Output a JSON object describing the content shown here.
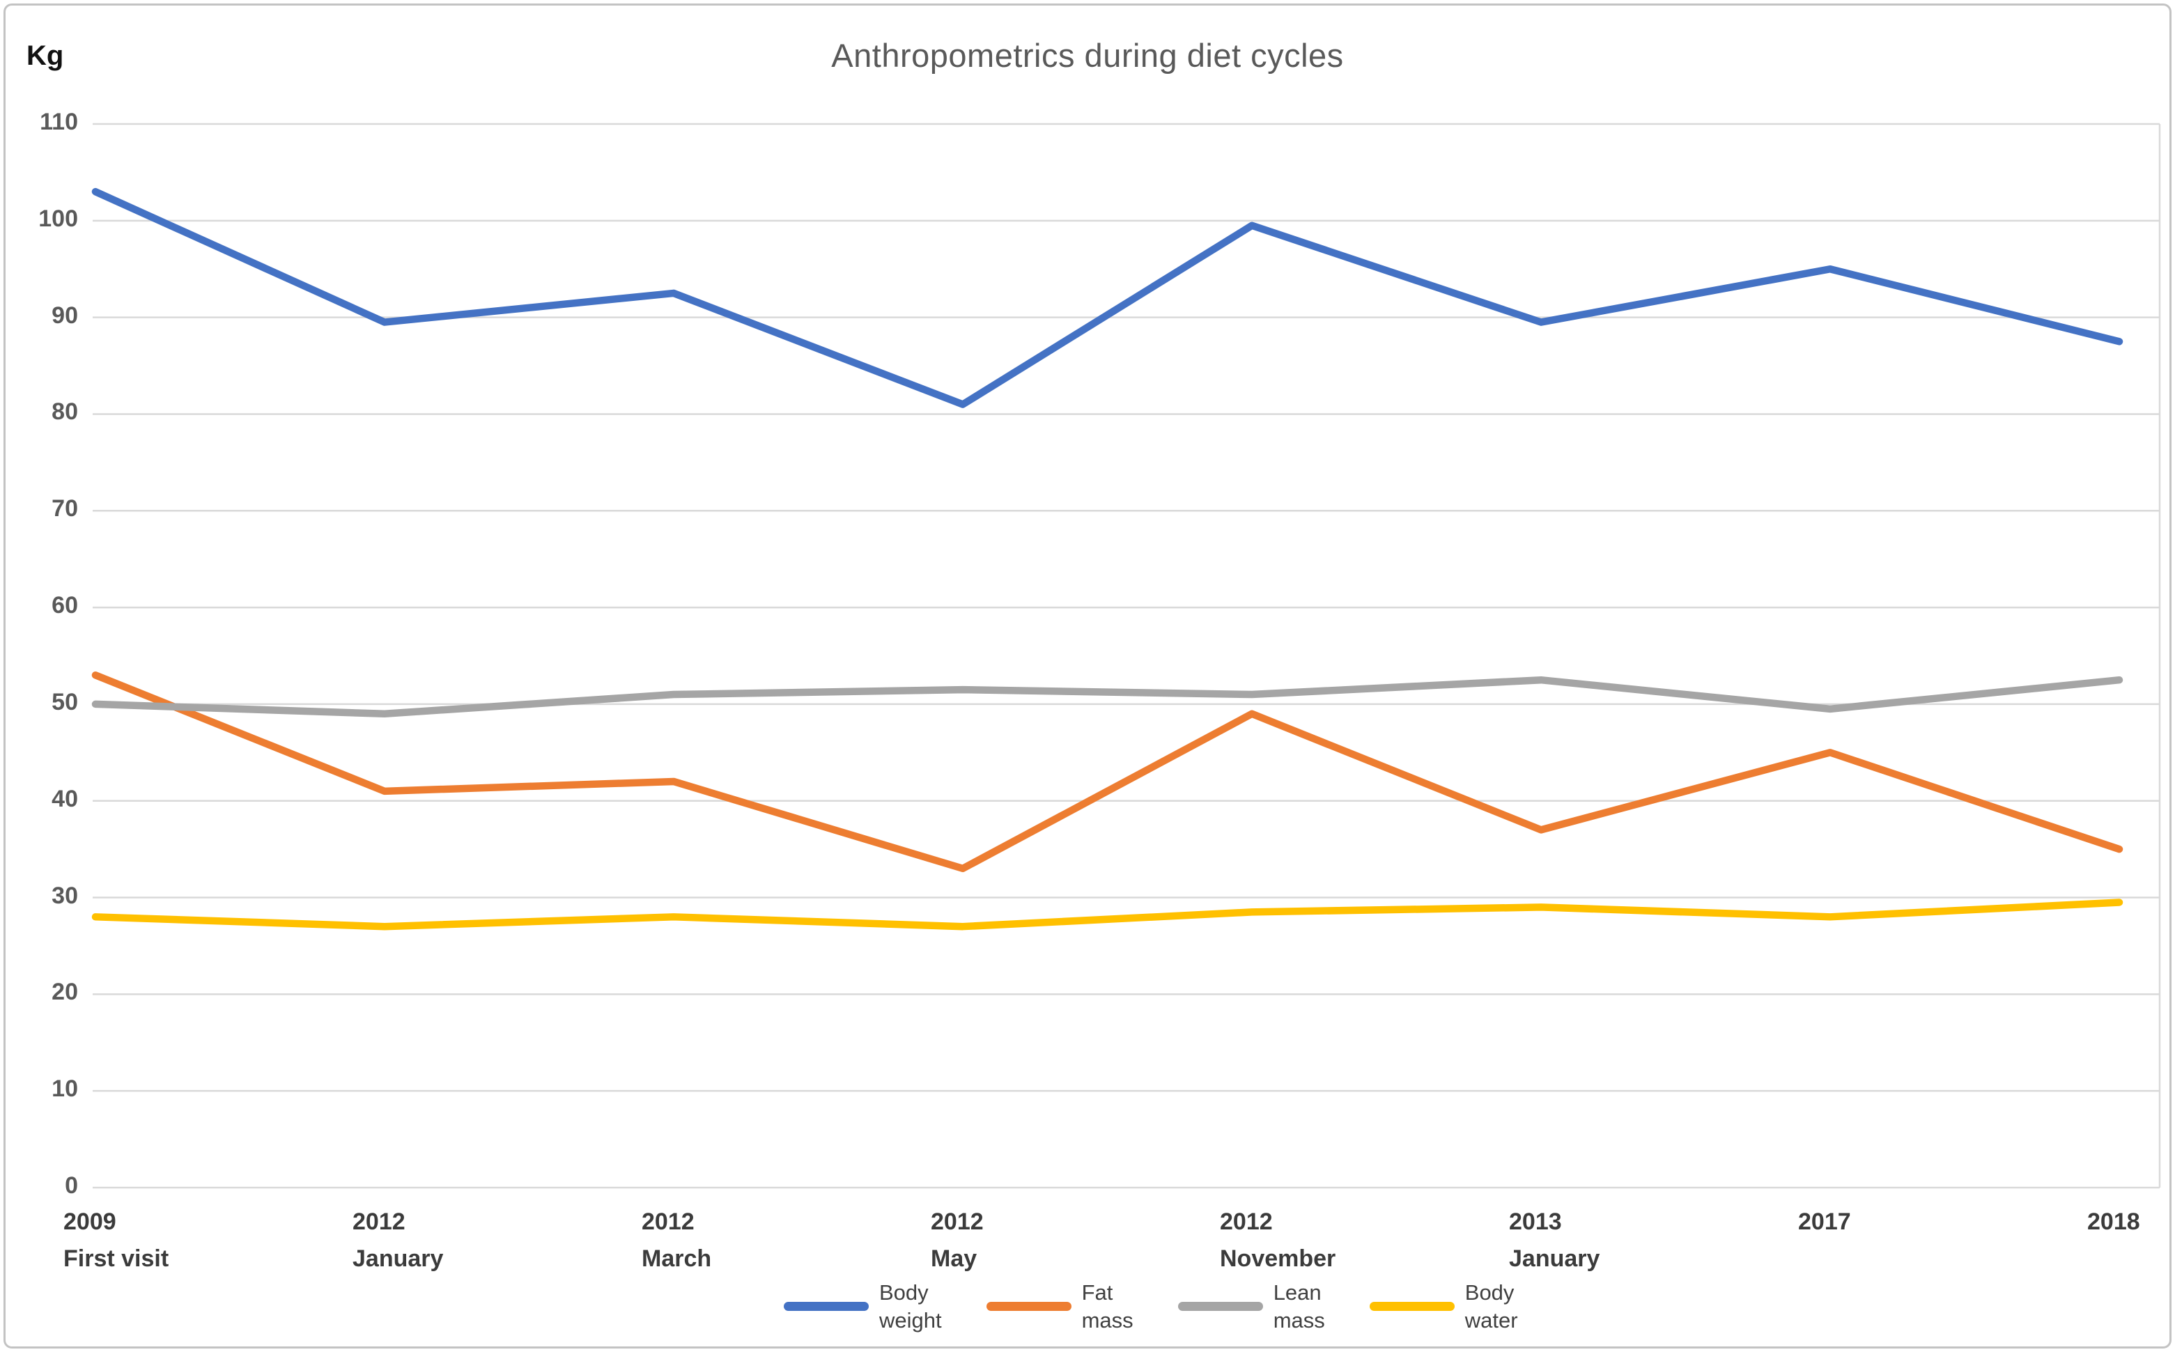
{
  "chart_data": {
    "type": "line",
    "title": "Anthropometrics during diet cycles",
    "y_unit_label": "Kg",
    "ylim": [
      0,
      110
    ],
    "y_tick_step": 10,
    "grid": true,
    "legend_position": "bottom",
    "categories": [
      [
        "2009",
        "First visit"
      ],
      [
        "2012",
        "January"
      ],
      [
        "2012",
        "March"
      ],
      [
        "2012",
        "May"
      ],
      [
        "2012",
        "November"
      ],
      [
        "2013",
        "January"
      ],
      [
        "2017"
      ],
      [
        "2018"
      ]
    ],
    "series": [
      {
        "name": "Body weight",
        "legend_lines": [
          "Body",
          "weight"
        ],
        "color": "#4472C4",
        "values": [
          103,
          89.5,
          92.5,
          81,
          99.5,
          89.5,
          95,
          87.5
        ]
      },
      {
        "name": "Fat mass",
        "legend_lines": [
          "Fat",
          "mass"
        ],
        "color": "#ED7D31",
        "values": [
          53,
          41,
          42,
          33,
          49,
          37,
          45,
          35
        ]
      },
      {
        "name": "Lean mass",
        "legend_lines": [
          "Lean",
          "mass"
        ],
        "color": "#A5A5A5",
        "values": [
          50,
          49,
          51,
          51.5,
          51,
          52.5,
          49.5,
          52.5
        ]
      },
      {
        "name": "Body water",
        "legend_lines": [
          "Body",
          "water"
        ],
        "color": "#FFC000",
        "values": [
          28,
          27,
          28,
          27,
          28.5,
          29,
          28,
          29.5
        ]
      }
    ]
  },
  "styles": {
    "background": "#FFFFFF",
    "grid_color": "#D9D9D9",
    "frame_color": "#C3C3C3",
    "title_color": "#595959",
    "tick_color": "#595959",
    "category_color": "#3B3B3B",
    "legend_text_color": "#404040"
  }
}
